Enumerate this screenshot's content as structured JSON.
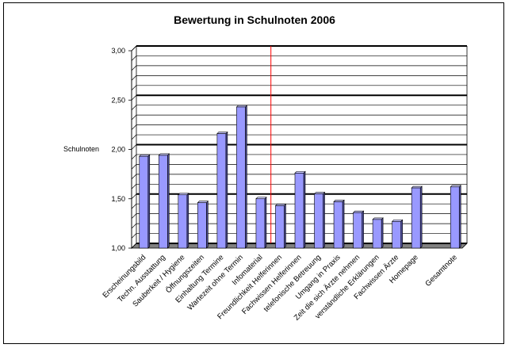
{
  "chart_data": {
    "type": "bar",
    "title": "Bewertung in Schulnoten 2006",
    "ylabel": "Schulnoten",
    "xlabel": "",
    "ylim": [
      1.0,
      3.0
    ],
    "yticks": [
      "1,00",
      "1,50",
      "2,00",
      "2,50",
      "3,00"
    ],
    "categories": [
      "Erscheinungsbild",
      "Techn. Ausstattung",
      "Sauberkeit / Hygiene",
      "Öffnungszeiten",
      "Einhaltung Termine",
      "Wartezeit ohne Termin",
      "Infomaterial",
      "Freundlichkeit Helferinnen",
      "Fachwissen Helferinnen",
      "telefonische Betreuung",
      "Umgang in Praxis",
      "Zeit die sich Ärzte nehmen",
      "verständliche Erklärungen",
      "Fachwissen Ärzte",
      "Homepage",
      "",
      "Gesamtnote"
    ],
    "values": [
      1.93,
      1.94,
      1.54,
      1.46,
      2.16,
      2.43,
      1.5,
      1.43,
      1.76,
      1.55,
      1.47,
      1.36,
      1.29,
      1.27,
      1.61,
      null,
      1.62
    ],
    "grid": true,
    "legend": "none",
    "colors": {
      "bar_face": "#9999ff",
      "bar_side": "#4d4d99",
      "bar_top": "#c8c8ff",
      "floor": "#808080",
      "divider": "#ff0000"
    }
  }
}
